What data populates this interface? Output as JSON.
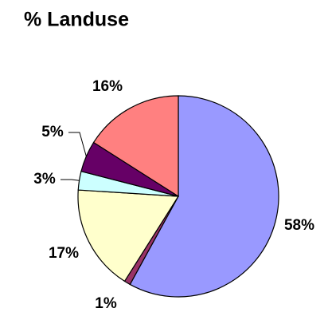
{
  "chart_data": {
    "type": "pie",
    "title": "% Landuse",
    "values": [
      58,
      1,
      17,
      3,
      5,
      16
    ],
    "value_labels": [
      "58%",
      "1%",
      "17%",
      "3%",
      "5%",
      "16%"
    ],
    "colors": [
      "#9999ff",
      "#993366",
      "#ffffcc",
      "#ccffff",
      "#660066",
      "#ff8080"
    ]
  }
}
